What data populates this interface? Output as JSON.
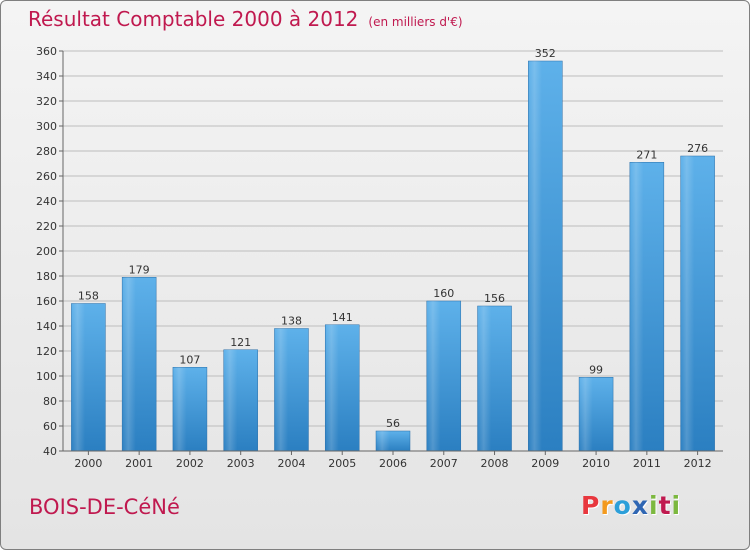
{
  "header": {
    "title": "Résultat Comptable 2000 à 2012",
    "subtitle": "(en milliers d'€)"
  },
  "footer": {
    "commune": "BOIS-DE-CéNé",
    "logo_letters": [
      "P",
      "r",
      "o",
      "x",
      "i",
      "t",
      "i"
    ],
    "logo_colors": [
      "#e8373e",
      "#f39a1e",
      "#2c9fd9",
      "#2f66b3",
      "#7cb83f",
      "#c0194f",
      "#7cb83f"
    ]
  },
  "colors": {
    "bar_top": "#5eb1ea",
    "bar_bottom": "#2b7fc1",
    "title": "#c0194f",
    "grid": "#bdbdbd"
  },
  "chart_data": {
    "type": "bar",
    "title": "Résultat Comptable 2000 à 2012",
    "unit": "(en milliers d'€)",
    "categories": [
      "2000",
      "2001",
      "2002",
      "2003",
      "2004",
      "2005",
      "2006",
      "2007",
      "2008",
      "2009",
      "2010",
      "2011",
      "2012"
    ],
    "values": [
      158,
      179,
      107,
      121,
      138,
      141,
      56,
      160,
      156,
      352,
      99,
      271,
      276
    ],
    "ylim": [
      40,
      360
    ],
    "ytick_step": 20,
    "grid": true,
    "xlabel": "",
    "ylabel": ""
  }
}
